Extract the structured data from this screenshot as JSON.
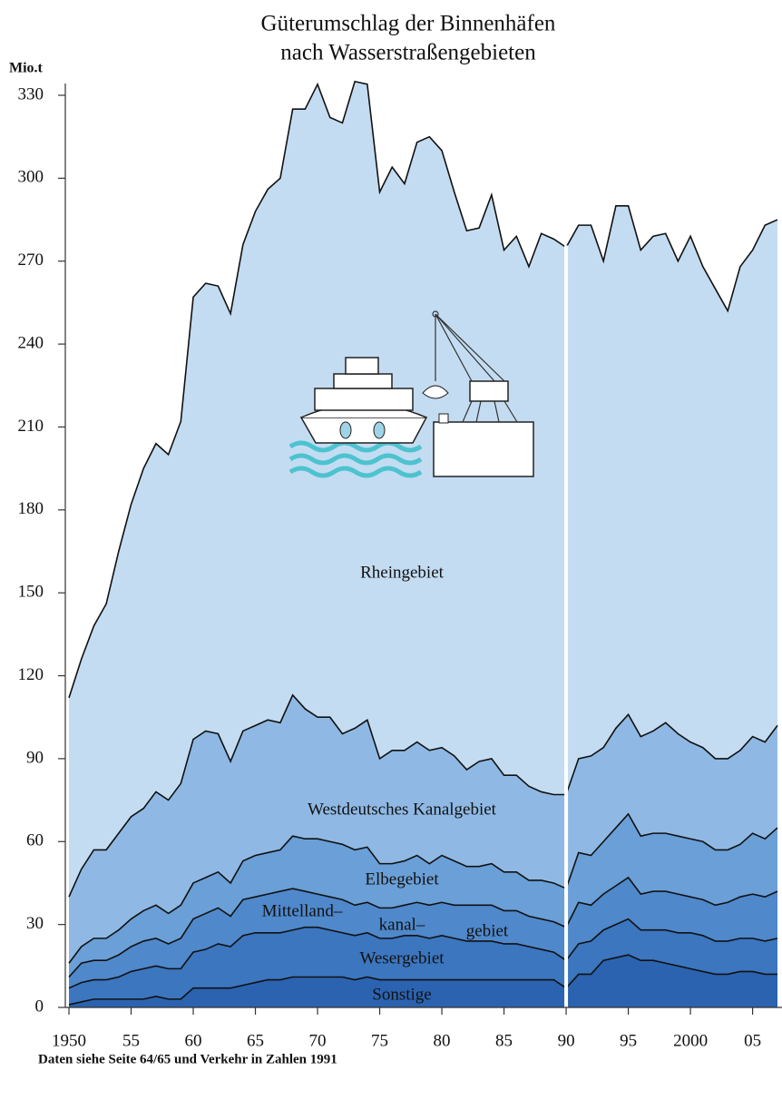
{
  "chart_data": {
    "type": "stacked_area",
    "title": "Güterumschlag der Binnenhäfen",
    "subtitle": "nach Wasserstraßengebieten",
    "y_label": "Mio.t",
    "source": "Daten siehe Seite 64/65 und Verkehr in Zahlen 1991",
    "x": [
      1950,
      1951,
      1952,
      1953,
      1954,
      1955,
      1956,
      1957,
      1958,
      1959,
      1960,
      1961,
      1962,
      1963,
      1964,
      1965,
      1966,
      1967,
      1968,
      1969,
      1970,
      1971,
      1972,
      1973,
      1974,
      1975,
      1976,
      1977,
      1978,
      1979,
      1980,
      1981,
      1982,
      1983,
      1984,
      1985,
      1986,
      1987,
      1988,
      1989,
      1990,
      1991,
      1992,
      1993,
      1994,
      1995,
      1996,
      1997,
      1998,
      1999,
      2000,
      2001,
      2002,
      2003,
      2004,
      2005,
      2006,
      2007
    ],
    "xlim": [
      1950,
      2007
    ],
    "xticks": [
      1950,
      {
        "value": 1955,
        "label": "55"
      },
      {
        "value": 1960,
        "label": "60"
      },
      {
        "value": 1965,
        "label": "65"
      },
      {
        "value": 1970,
        "label": "70"
      },
      {
        "value": 1975,
        "label": "75"
      },
      {
        "value": 1980,
        "label": "80"
      },
      {
        "value": 1985,
        "label": "85"
      },
      {
        "value": 1990,
        "label": "90"
      },
      {
        "value": 1995,
        "label": "95"
      },
      2000,
      {
        "value": 2005,
        "label": "05"
      }
    ],
    "ylim": [
      0,
      330
    ],
    "yticks": [
      0,
      30,
      60,
      90,
      120,
      150,
      180,
      210,
      240,
      270,
      300,
      330
    ],
    "series": [
      {
        "name": "Sonstige",
        "color": "#2b63b0",
        "values": [
          1,
          2,
          3,
          3,
          3,
          3,
          3,
          4,
          3,
          3,
          7,
          7,
          7,
          7,
          8,
          9,
          10,
          10,
          11,
          11,
          11,
          11,
          11,
          10,
          11,
          10,
          10,
          10,
          10,
          10,
          10,
          10,
          10,
          10,
          10,
          10,
          10,
          10,
          10,
          10,
          7,
          12,
          12,
          17,
          18,
          19,
          17,
          17,
          16,
          15,
          14,
          13,
          12,
          12,
          13,
          13,
          12,
          12
        ]
      },
      {
        "name": "Wesergebiet",
        "color": "#3b76bf",
        "values": [
          6,
          7,
          7,
          7,
          8,
          10,
          11,
          11,
          11,
          11,
          13,
          14,
          16,
          15,
          18,
          18,
          17,
          17,
          17,
          18,
          18,
          17,
          16,
          16,
          16,
          15,
          15,
          16,
          16,
          15,
          16,
          15,
          14,
          14,
          14,
          13,
          13,
          12,
          11,
          10,
          10,
          11,
          12,
          11,
          12,
          13,
          11,
          11,
          12,
          12,
          13,
          13,
          12,
          12,
          12,
          12,
          12,
          13
        ]
      },
      {
        "name": [
          "Mittelland–",
          "kanal–",
          "gebiet"
        ],
        "color": "#4f88cb",
        "values": [
          4,
          7,
          7,
          7,
          8,
          9,
          10,
          10,
          9,
          11,
          12,
          13,
          13,
          11,
          13,
          13,
          14,
          15,
          15,
          13,
          12,
          12,
          12,
          11,
          11,
          11,
          11,
          11,
          12,
          12,
          12,
          12,
          13,
          13,
          13,
          12,
          12,
          11,
          11,
          11,
          12,
          15,
          13,
          13,
          14,
          15,
          13,
          14,
          14,
          14,
          13,
          13,
          13,
          14,
          15,
          16,
          16,
          17
        ]
      },
      {
        "name": "Elbegebiet",
        "color": "#6a9fd7",
        "values": [
          5,
          6,
          8,
          8,
          9,
          10,
          11,
          12,
          11,
          12,
          13,
          13,
          13,
          12,
          14,
          15,
          15,
          15,
          19,
          19,
          20,
          20,
          20,
          20,
          20,
          16,
          16,
          16,
          17,
          15,
          17,
          16,
          14,
          14,
          15,
          14,
          14,
          13,
          14,
          14,
          14,
          18,
          18,
          19,
          21,
          23,
          21,
          21,
          21,
          21,
          21,
          21,
          20,
          19,
          19,
          22,
          21,
          23
        ]
      },
      {
        "name": "Westdeutsches Kanalgebiet",
        "color": "#8fb9e4",
        "values": [
          24,
          28,
          32,
          32,
          35,
          37,
          37,
          41,
          41,
          44,
          52,
          53,
          50,
          44,
          47,
          47,
          48,
          46,
          51,
          47,
          44,
          45,
          40,
          44,
          46,
          38,
          41,
          40,
          41,
          41,
          39,
          38,
          35,
          38,
          38,
          35,
          35,
          34,
          32,
          32,
          34,
          34,
          36,
          34,
          36,
          36,
          36,
          37,
          40,
          37,
          35,
          34,
          33,
          33,
          34,
          35,
          35,
          37
        ]
      },
      {
        "name": "Rheingebiet",
        "color": "#c3dcf2",
        "values": [
          72,
          76,
          81,
          89,
          102,
          113,
          123,
          126,
          125,
          131,
          160,
          162,
          162,
          162,
          176,
          186,
          192,
          197,
          212,
          217,
          229,
          217,
          221,
          234,
          230,
          205,
          211,
          205,
          217,
          222,
          216,
          204,
          195,
          193,
          204,
          190,
          195,
          188,
          202,
          201,
          198,
          193,
          192,
          176,
          189,
          184,
          176,
          179,
          177,
          171,
          183,
          174,
          170,
          162,
          175,
          176,
          187,
          183
        ]
      }
    ]
  }
}
